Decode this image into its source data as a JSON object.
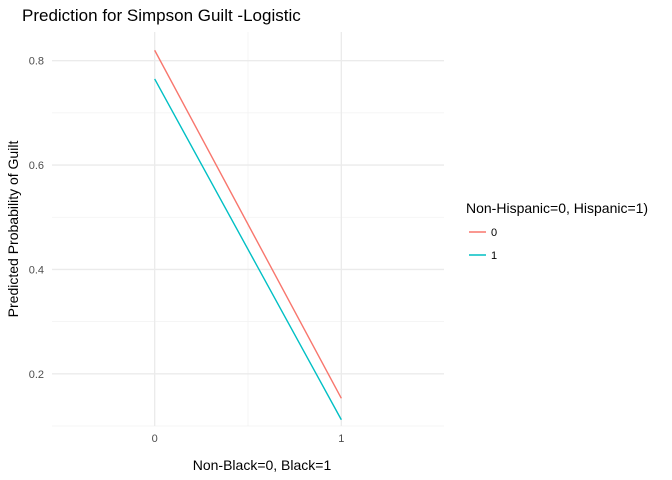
{
  "chart_data": {
    "type": "line",
    "title": "Prediction for Simpson Guilt -Logistic",
    "xlabel": "Non-Black=0, Black=1",
    "ylabel": "Predicted Probability of Guilt",
    "x": [
      0,
      1
    ],
    "x_ticks": [
      "0",
      "1"
    ],
    "xlim": [
      -0.55,
      1.55
    ],
    "y_ticks": [
      "0.2",
      "0.4",
      "0.6",
      "0.8"
    ],
    "ylim": [
      0.1,
      0.855
    ],
    "grid": true,
    "legend": {
      "title": "Non-Hispanic=0, Hispanic=1)",
      "position": "right"
    },
    "series": [
      {
        "name": "0",
        "color": "#F8766D",
        "values": [
          0.82,
          0.153
        ]
      },
      {
        "name": "1",
        "color": "#00BFC4",
        "values": [
          0.765,
          0.112
        ]
      }
    ]
  }
}
